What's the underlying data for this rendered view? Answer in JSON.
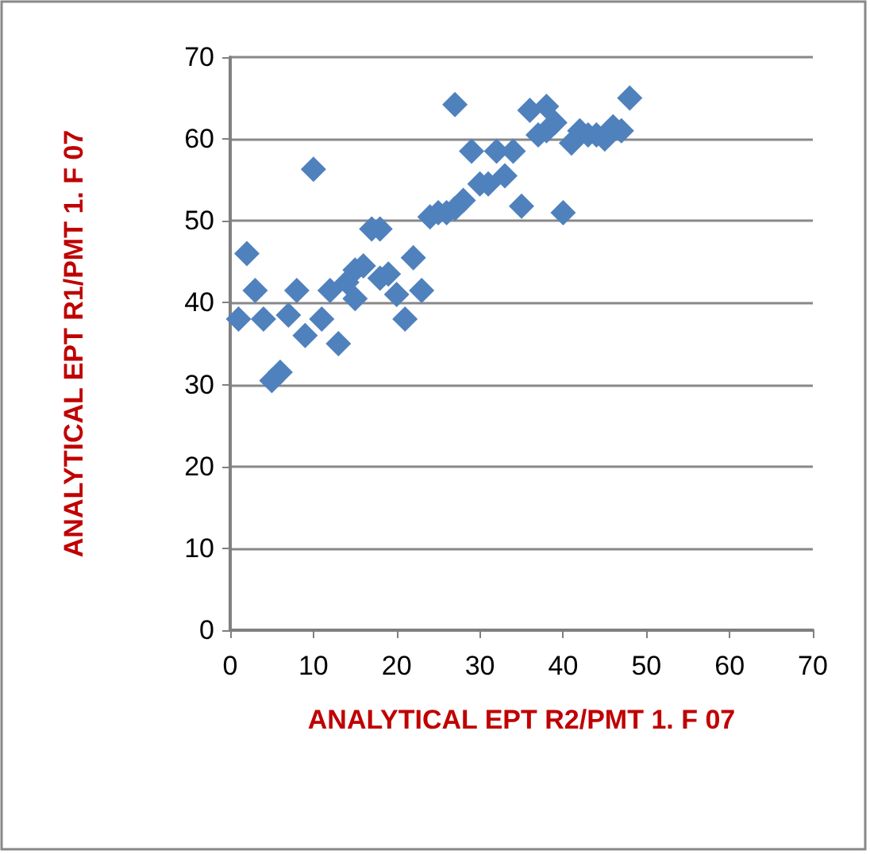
{
  "chart_data": {
    "type": "scatter",
    "xlabel": "ANALYTICAL EPT R2/PMT 1. F 07",
    "ylabel": "ANALYTICAL EPT R1/PMT 1. F 07",
    "x": [
      1,
      2,
      3,
      4,
      5,
      6,
      7,
      8,
      9,
      10,
      11,
      12,
      13,
      14,
      15,
      15,
      16,
      17,
      18,
      18,
      19,
      20,
      21,
      22,
      23,
      24,
      25,
      26,
      27,
      27,
      28,
      29,
      30,
      31,
      32,
      33,
      34,
      35,
      36,
      37,
      38,
      38,
      39,
      40,
      41,
      42,
      43,
      44,
      45,
      46,
      47,
      48
    ],
    "series": [
      {
        "color": "#4f81bd",
        "values": [
          38,
          46,
          41.5,
          38,
          30.5,
          31.5,
          38.5,
          41.5,
          36,
          56.3,
          38,
          41.5,
          35,
          42.5,
          40.5,
          44,
          44.5,
          49,
          49,
          43,
          43.5,
          41,
          38,
          45.5,
          41.5,
          50.5,
          51,
          51,
          64.2,
          51.5,
          52.5,
          58.5,
          54.5,
          54.5,
          58.5,
          55.5,
          58.5,
          51.8,
          63.5,
          60.5,
          64,
          61,
          62,
          51,
          59.5,
          61,
          60.5,
          60.5,
          60,
          61.5,
          61,
          65
        ]
      }
    ],
    "xlim": [
      0,
      70
    ],
    "xticks": [
      0,
      10,
      20,
      30,
      40,
      50,
      60,
      70
    ],
    "ylim": [
      0,
      70
    ],
    "yticks": [
      0,
      10,
      20,
      30,
      40,
      50,
      60,
      70
    ],
    "grid": "y",
    "marker": "diamond"
  }
}
